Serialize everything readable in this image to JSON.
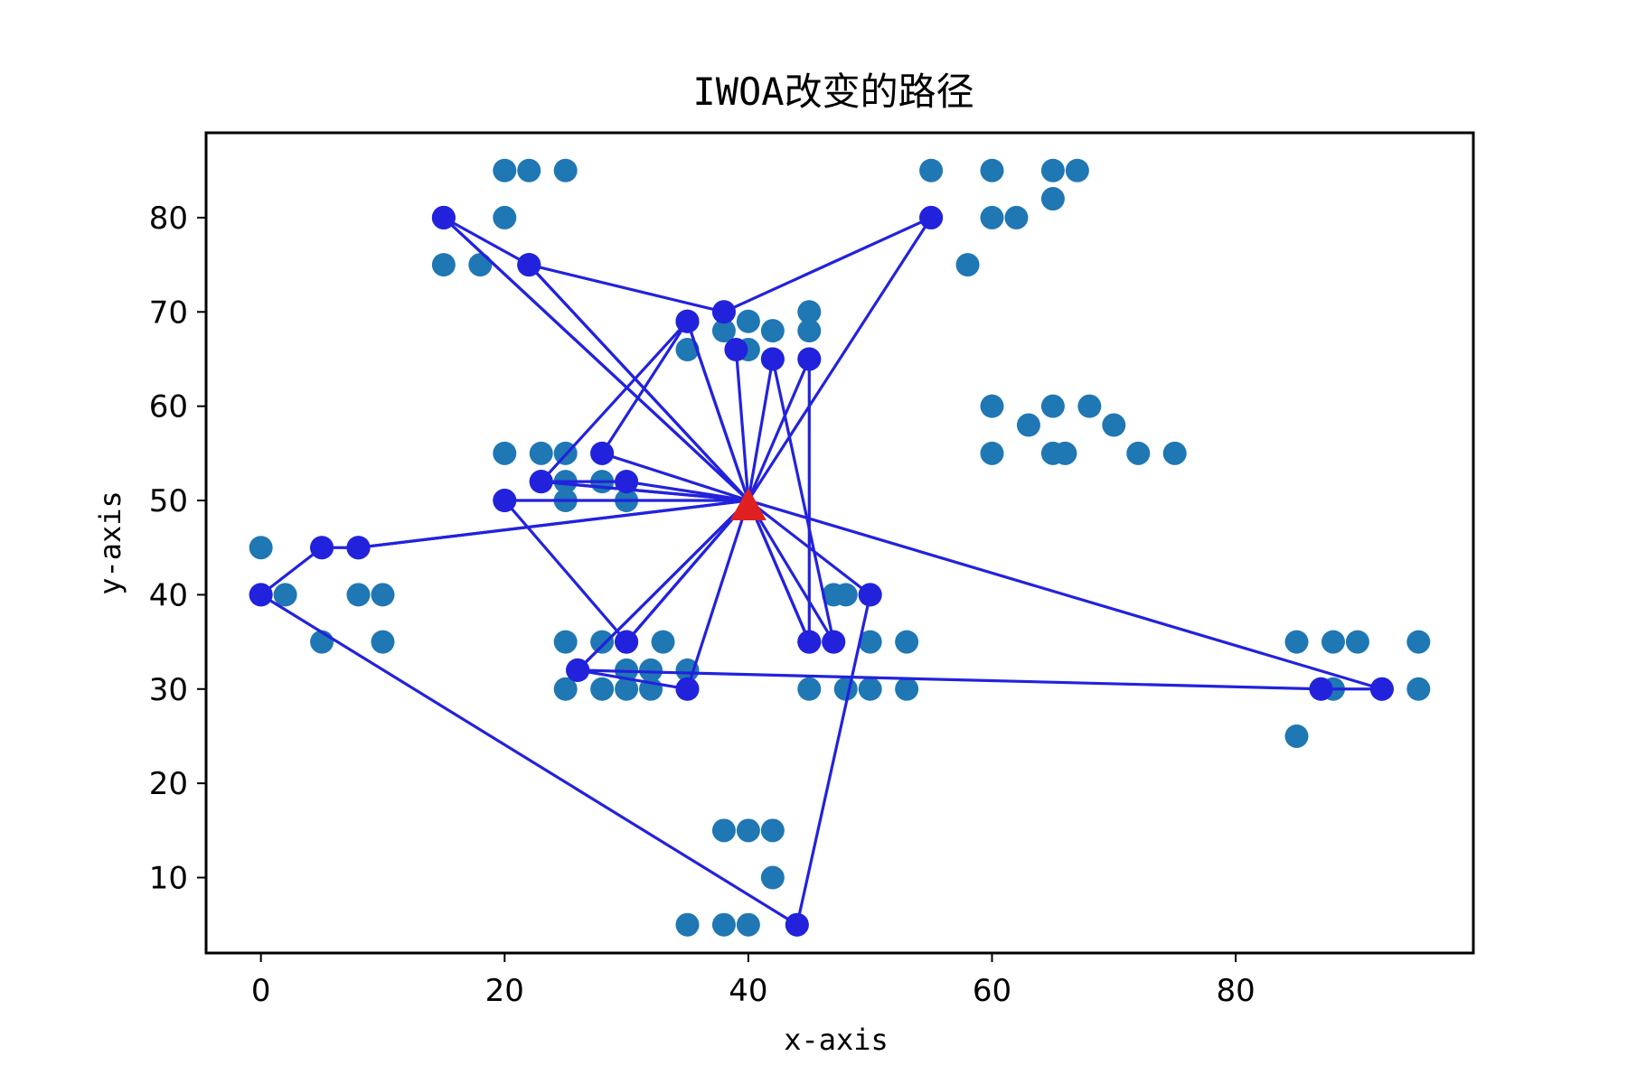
{
  "chart_data": {
    "type": "scatter",
    "title": "IWOA改变的路径",
    "xlabel": "x-axis",
    "ylabel": "y-axis",
    "xlim": [
      -4.5,
      99.5
    ],
    "ylim": [
      2,
      89
    ],
    "xticks": [
      0,
      20,
      40,
      60,
      80
    ],
    "yticks": [
      10,
      20,
      30,
      40,
      50,
      60,
      70,
      80
    ],
    "grid": false,
    "colors": {
      "nodes": "#1f77b4",
      "route": "#2222dd",
      "depot": "#e02020"
    },
    "depot": {
      "x": 40,
      "y": 50
    },
    "customers": [
      [
        20,
        85
      ],
      [
        22,
        85
      ],
      [
        25,
        85
      ],
      [
        55,
        85
      ],
      [
        60,
        85
      ],
      [
        65,
        85
      ],
      [
        67,
        85
      ],
      [
        15,
        80
      ],
      [
        20,
        80
      ],
      [
        55,
        80
      ],
      [
        60,
        80
      ],
      [
        62,
        80
      ],
      [
        65,
        82
      ],
      [
        15,
        75
      ],
      [
        18,
        75
      ],
      [
        22,
        75
      ],
      [
        58,
        75
      ],
      [
        35,
        69
      ],
      [
        38,
        70
      ],
      [
        38,
        68
      ],
      [
        40,
        69
      ],
      [
        42,
        68
      ],
      [
        45,
        70
      ],
      [
        45,
        68
      ],
      [
        35,
        66
      ],
      [
        40,
        66
      ],
      [
        42,
        65
      ],
      [
        45,
        65
      ],
      [
        60,
        60
      ],
      [
        65,
        60
      ],
      [
        68,
        60
      ],
      [
        63,
        58
      ],
      [
        70,
        58
      ],
      [
        20,
        55
      ],
      [
        23,
        55
      ],
      [
        25,
        55
      ],
      [
        28,
        55
      ],
      [
        60,
        55
      ],
      [
        65,
        55
      ],
      [
        66,
        55
      ],
      [
        72,
        55
      ],
      [
        75,
        55
      ],
      [
        23,
        52
      ],
      [
        25,
        52
      ],
      [
        28,
        52
      ],
      [
        30,
        52
      ],
      [
        25,
        50
      ],
      [
        20,
        50
      ],
      [
        30,
        50
      ],
      [
        0,
        45
      ],
      [
        5,
        45
      ],
      [
        8,
        45
      ],
      [
        0,
        40
      ],
      [
        2,
        40
      ],
      [
        8,
        40
      ],
      [
        10,
        40
      ],
      [
        48,
        40
      ],
      [
        47,
        40
      ],
      [
        50,
        40
      ],
      [
        5,
        35
      ],
      [
        10,
        35
      ],
      [
        25,
        35
      ],
      [
        28,
        35
      ],
      [
        30,
        35
      ],
      [
        33,
        35
      ],
      [
        45,
        35
      ],
      [
        47,
        35
      ],
      [
        50,
        35
      ],
      [
        53,
        35
      ],
      [
        85,
        35
      ],
      [
        88,
        35
      ],
      [
        90,
        35
      ],
      [
        95,
        35
      ],
      [
        26,
        32
      ],
      [
        30,
        32
      ],
      [
        32,
        32
      ],
      [
        35,
        32
      ],
      [
        25,
        30
      ],
      [
        28,
        30
      ],
      [
        30,
        30
      ],
      [
        32,
        30
      ],
      [
        35,
        30
      ],
      [
        45,
        30
      ],
      [
        48,
        30
      ],
      [
        50,
        30
      ],
      [
        53,
        30
      ],
      [
        87,
        30
      ],
      [
        88,
        30
      ],
      [
        92,
        30
      ],
      [
        95,
        30
      ],
      [
        85,
        25
      ],
      [
        38,
        15
      ],
      [
        40,
        15
      ],
      [
        42,
        15
      ],
      [
        42,
        10
      ],
      [
        35,
        5
      ],
      [
        38,
        5
      ],
      [
        40,
        5
      ],
      [
        44,
        5
      ]
    ],
    "routes": [
      {
        "points": [
          [
            40,
            50
          ],
          [
            15,
            80
          ],
          [
            22,
            75
          ],
          [
            40,
            50
          ]
        ]
      },
      {
        "points": [
          [
            40,
            50
          ],
          [
            22,
            75
          ],
          [
            38,
            70
          ],
          [
            55,
            80
          ],
          [
            40,
            50
          ]
        ]
      },
      {
        "points": [
          [
            40,
            50
          ],
          [
            35,
            69
          ],
          [
            23,
            52
          ],
          [
            40,
            50
          ]
        ]
      },
      {
        "points": [
          [
            40,
            50
          ],
          [
            15,
            80
          ],
          [
            40,
            50
          ]
        ]
      },
      {
        "points": [
          [
            40,
            50
          ],
          [
            39,
            66
          ],
          [
            40,
            50
          ]
        ]
      },
      {
        "points": [
          [
            40,
            50
          ],
          [
            42,
            65
          ],
          [
            47,
            35
          ],
          [
            40,
            50
          ]
        ]
      },
      {
        "points": [
          [
            40,
            50
          ],
          [
            45,
            65
          ],
          [
            45,
            35
          ],
          [
            40,
            50
          ]
        ]
      },
      {
        "points": [
          [
            40,
            50
          ],
          [
            35,
            69
          ],
          [
            28,
            55
          ],
          [
            40,
            50
          ]
        ]
      },
      {
        "points": [
          [
            40,
            50
          ],
          [
            30,
            52
          ],
          [
            23,
            52
          ],
          [
            40,
            50
          ]
        ]
      },
      {
        "points": [
          [
            40,
            50
          ],
          [
            20,
            50
          ],
          [
            30,
            35
          ],
          [
            40,
            50
          ]
        ]
      },
      {
        "points": [
          [
            40,
            50
          ],
          [
            8,
            45
          ],
          [
            5,
            45
          ],
          [
            0,
            40
          ],
          [
            44,
            5
          ],
          [
            50,
            40
          ],
          [
            40,
            50
          ]
        ]
      },
      {
        "points": [
          [
            40,
            50
          ],
          [
            8,
            45
          ],
          [
            40,
            50
          ]
        ]
      },
      {
        "points": [
          [
            40,
            50
          ],
          [
            30,
            35
          ],
          [
            40,
            50
          ]
        ]
      },
      {
        "points": [
          [
            40,
            50
          ],
          [
            26,
            32
          ],
          [
            87,
            30
          ],
          [
            92,
            30
          ],
          [
            40,
            50
          ]
        ]
      },
      {
        "points": [
          [
            40,
            50
          ],
          [
            35,
            30
          ],
          [
            26,
            32
          ],
          [
            40,
            50
          ]
        ]
      },
      {
        "points": [
          [
            40,
            50
          ],
          [
            45,
            35
          ],
          [
            40,
            50
          ]
        ]
      }
    ]
  }
}
